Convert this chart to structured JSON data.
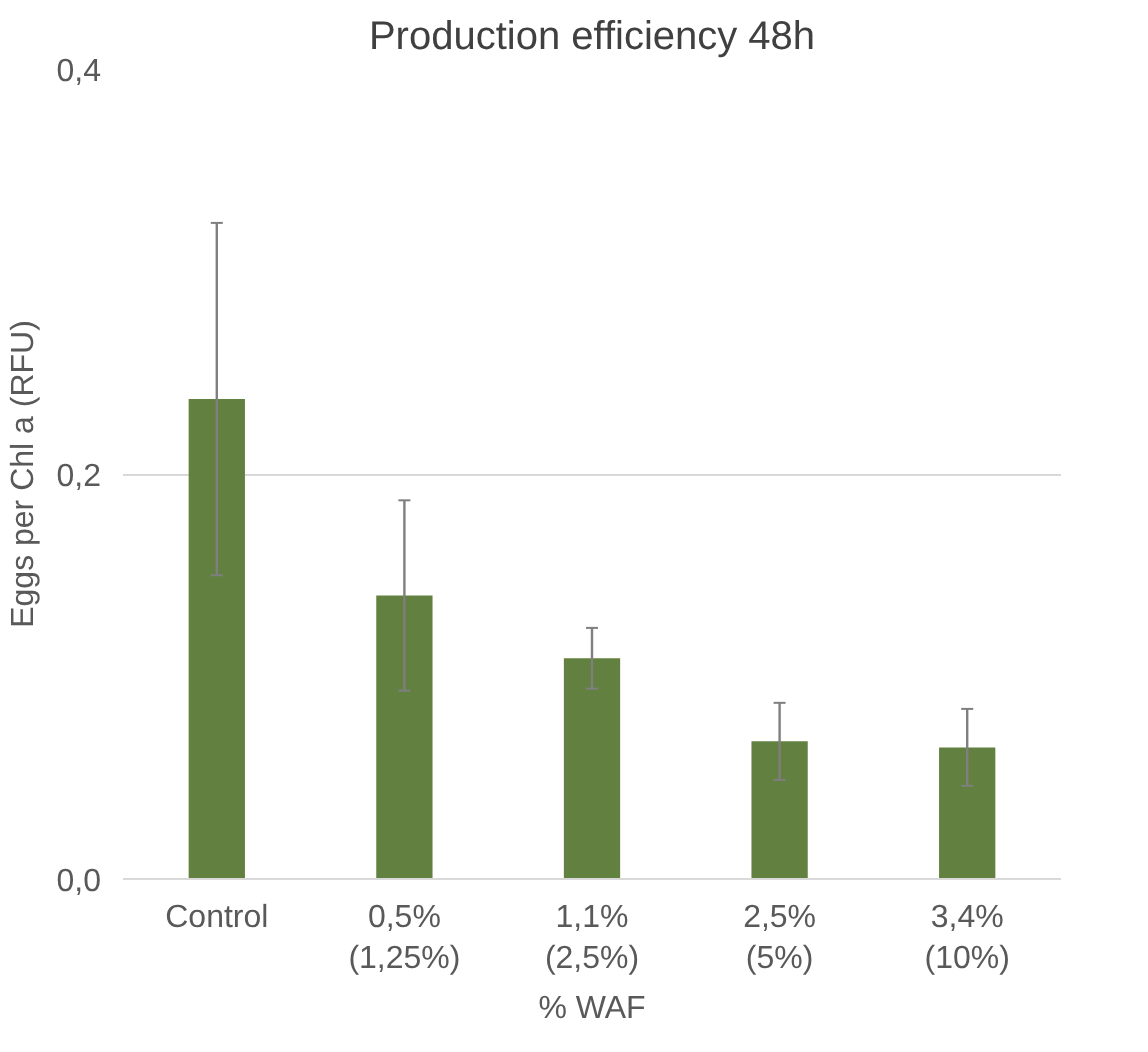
{
  "chart_data": {
    "type": "bar",
    "title": "Production efficiency 48h",
    "xlabel": "% WAF",
    "ylabel": "Eggs per Chl a (RFU)",
    "categories": [
      "Control",
      "0,5%\n(1,25%)",
      "1,1%\n(2,5%)",
      "2,5%\n(5%)",
      "3,4%\n(10%)"
    ],
    "values": [
      0.237,
      0.14,
      0.109,
      0.068,
      0.065
    ],
    "errors": [
      0.087,
      0.047,
      0.015,
      0.019,
      0.019
    ],
    "color": "#62803f",
    "ylim": [
      0,
      0.4
    ],
    "yticks": [
      {
        "value": 0,
        "label": "0,0"
      },
      {
        "value": 0.2,
        "label": "0,2"
      },
      {
        "value": 0.4,
        "label": "0,4"
      }
    ],
    "grid": "y"
  }
}
